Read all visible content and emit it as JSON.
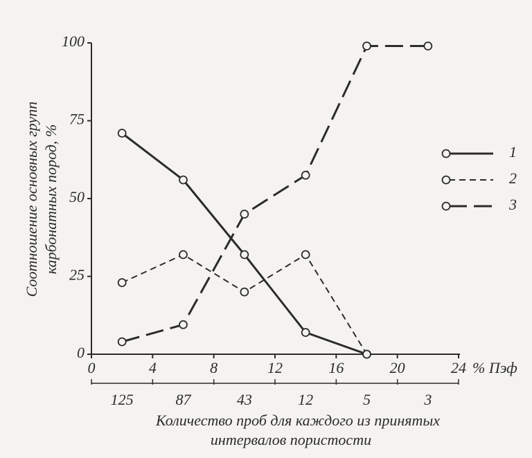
{
  "chart_data": {
    "type": "line",
    "y_label": [
      "Соотношение основных групп",
      "карбонатных пород, %"
    ],
    "x_unit_label": "% Пэф",
    "x": [
      2,
      6,
      10,
      14,
      18,
      22
    ],
    "series": [
      {
        "name": "1",
        "color": "#2b2b2b",
        "line_style": "solid",
        "values": [
          71,
          56,
          32,
          7,
          0,
          null
        ]
      },
      {
        "name": "2",
        "color": "#2b2b2b",
        "line_style": "short-dash",
        "values": [
          23,
          32,
          20,
          32,
          0,
          null
        ]
      },
      {
        "name": "3",
        "color": "#2b2b2b",
        "line_style": "long-dash",
        "values": [
          4,
          9.5,
          45,
          57.5,
          99,
          99
        ]
      }
    ],
    "xlim": [
      0,
      24
    ],
    "xticks": [
      0,
      4,
      8,
      12,
      16,
      20,
      24
    ],
    "ylim": [
      0,
      100
    ],
    "yticks": [
      0,
      25,
      50,
      75,
      100
    ],
    "sample_counts": [
      "125",
      "87",
      "43",
      "12",
      "5",
      "3"
    ],
    "sample_axis_label": [
      "Количество проб для каждого из принятых",
      "интервалов пористости"
    ]
  }
}
